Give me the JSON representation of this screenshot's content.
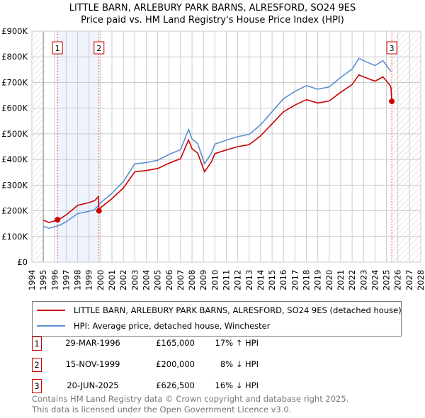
{
  "title_line1": "LITTLE BARN, ARLEBURY PARK BARNS, ALRESFORD, SO24 9ES",
  "title_line2": "Price paid vs. HM Land Registry's House Price Index (HPI)",
  "chart_data": {
    "type": "line",
    "xlim": [
      1994,
      2028
    ],
    "ylim": [
      0,
      900000
    ],
    "yticks": [
      0,
      100000,
      200000,
      300000,
      400000,
      500000,
      600000,
      700000,
      800000,
      900000
    ],
    "ytick_labels": [
      "£0",
      "£100K",
      "£200K",
      "£300K",
      "£400K",
      "£500K",
      "£600K",
      "£700K",
      "£800K",
      "£900K"
    ],
    "xticks": [
      1994,
      1995,
      1996,
      1997,
      1998,
      1999,
      2000,
      2001,
      2002,
      2003,
      2004,
      2005,
      2006,
      2007,
      2008,
      2009,
      2010,
      2011,
      2012,
      2013,
      2014,
      2015,
      2016,
      2017,
      2018,
      2019,
      2020,
      2021,
      2022,
      2023,
      2024,
      2025,
      2026,
      2027,
      2028
    ],
    "grid": true,
    "hatched_ranges": [
      [
        1994,
        1995
      ],
      [
        2025.5,
        2028
      ]
    ],
    "shaded_range": [
      1996.24,
      1999.87
    ],
    "series": [
      {
        "name": "LITTLE BARN, ARLEBURY PARK BARNS, ALRESFORD, SO24 9ES (detached house)",
        "color": "#cc0000",
        "x": [
          1995,
          1995.5,
          1996,
          1996.24,
          1996.5,
          1997,
          1998,
          1999,
          1999.5,
          1999.8,
          1999.87,
          2000,
          2001,
          2002,
          2003,
          2004,
          2005,
          2006,
          2007,
          2007.7,
          2008,
          2008.5,
          2009.1,
          2009.7,
          2010,
          2011,
          2012,
          2013,
          2014,
          2015,
          2016,
          2017,
          2018,
          2019,
          2020,
          2021,
          2022,
          2022.6,
          2023,
          2024,
          2024.7,
          2025.3,
          2025.4,
          2025.47
        ],
        "y": [
          164000,
          154000,
          161000,
          165000,
          170000,
          184000,
          221000,
          232000,
          240000,
          255000,
          200000,
          212000,
          247000,
          289000,
          352000,
          357000,
          365000,
          386000,
          403000,
          476000,
          442000,
          425000,
          352000,
          391000,
          423000,
          437000,
          450000,
          458000,
          492000,
          539000,
          586000,
          612000,
          633000,
          620000,
          628000,
          662000,
          692000,
          730000,
          722000,
          705000,
          722000,
          690000,
          680000,
          626500
        ]
      },
      {
        "name": "HPI: Average price, detached house, Winchester",
        "color": "#5b8fd0",
        "x": [
          1995,
          1995.5,
          1996,
          1996.5,
          1997,
          1998,
          1999,
          1999.5,
          2000,
          2001,
          2002,
          2003,
          2004,
          2005,
          2006,
          2007,
          2007.7,
          2008,
          2008.5,
          2009.1,
          2009.7,
          2010,
          2011,
          2012,
          2013,
          2014,
          2015,
          2016,
          2017,
          2018,
          2019,
          2020,
          2021,
          2022,
          2022.6,
          2023,
          2024,
          2024.7,
          2025.4
        ],
        "y": [
          140000,
          132000,
          138000,
          145000,
          157000,
          189000,
          198000,
          205000,
          231000,
          268000,
          314000,
          383000,
          388000,
          397000,
          420000,
          438000,
          517000,
          480000,
          462000,
          383000,
          425000,
          460000,
          475000,
          489000,
          498000,
          535000,
          586000,
          637000,
          665000,
          688000,
          674000,
          683000,
          720000,
          752000,
          794000,
          785000,
          766000,
          785000,
          743000
        ]
      }
    ],
    "sales": [
      {
        "label": "1",
        "x": 1996.24,
        "y": 165000
      },
      {
        "label": "2",
        "x": 1999.87,
        "y": 200000
      },
      {
        "label": "3",
        "x": 2025.47,
        "y": 626500
      }
    ]
  },
  "legend": {
    "red": "LITTLE BARN, ARLEBURY PARK BARNS, ALRESFORD, SO24 9ES (detached house)",
    "blue": "HPI: Average price, detached house, Winchester"
  },
  "transactions": [
    {
      "num": "1",
      "date": "29-MAR-1996",
      "price": "£165,000",
      "hpi": "17% ↑ HPI"
    },
    {
      "num": "2",
      "date": "15-NOV-1999",
      "price": "£200,000",
      "hpi": "8% ↓ HPI"
    },
    {
      "num": "3",
      "date": "20-JUN-2025",
      "price": "£626,500",
      "hpi": "16% ↓ HPI"
    }
  ],
  "footer": {
    "line1": "Contains HM Land Registry data © Crown copyright and database right 2025.",
    "line2": "This data is licensed under the Open Government Licence v3.0."
  }
}
